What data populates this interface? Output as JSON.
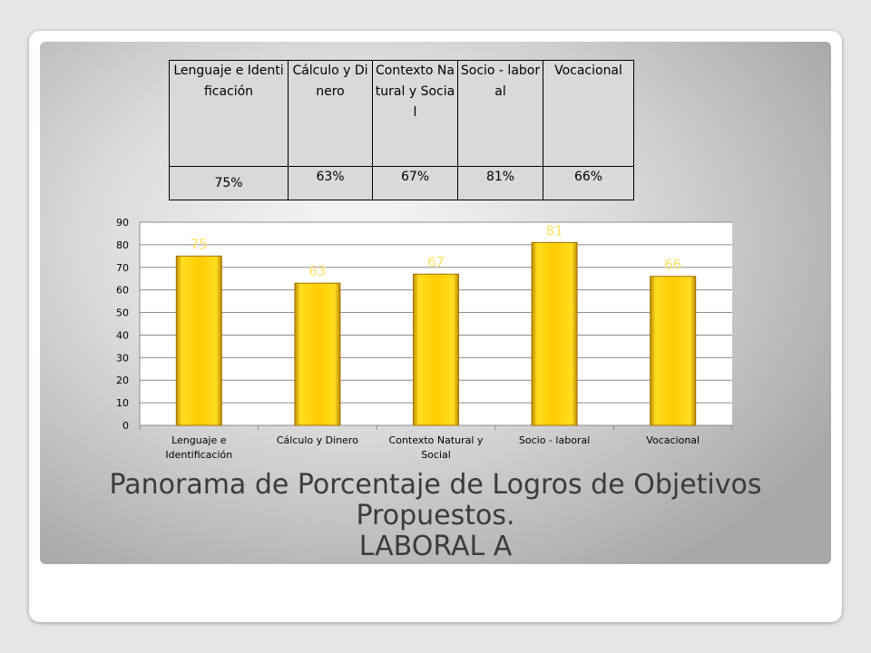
{
  "table": {
    "headers": [
      "Lenguaje e Identificación",
      "Cálculo y Dinero",
      "Contexto Natural y Social",
      "Socio - laboral",
      "Vocacional"
    ],
    "values": [
      "75%",
      "63%",
      "67%",
      "81%",
      "66%"
    ]
  },
  "chart_data": {
    "type": "bar",
    "categories": [
      "Lenguaje e Identificación",
      "Cálculo y Dinero",
      "Contexto Natural y Social",
      "Socio - laboral",
      "Vocacional"
    ],
    "values": [
      75,
      63,
      67,
      81,
      66
    ],
    "data_labels": [
      "75",
      "63",
      "67",
      "81",
      "66"
    ],
    "ylim": [
      0,
      90
    ],
    "yticks": [
      0,
      10,
      20,
      30,
      40,
      50,
      60,
      70,
      80,
      90
    ],
    "grid": true,
    "bar_color": "#ffcc00",
    "label_color": "#ffe066"
  },
  "title": {
    "line1": "Panorama de Porcentaje de Logros de Objetivos",
    "line2": "Propuestos.",
    "line3": "LABORAL  A"
  }
}
